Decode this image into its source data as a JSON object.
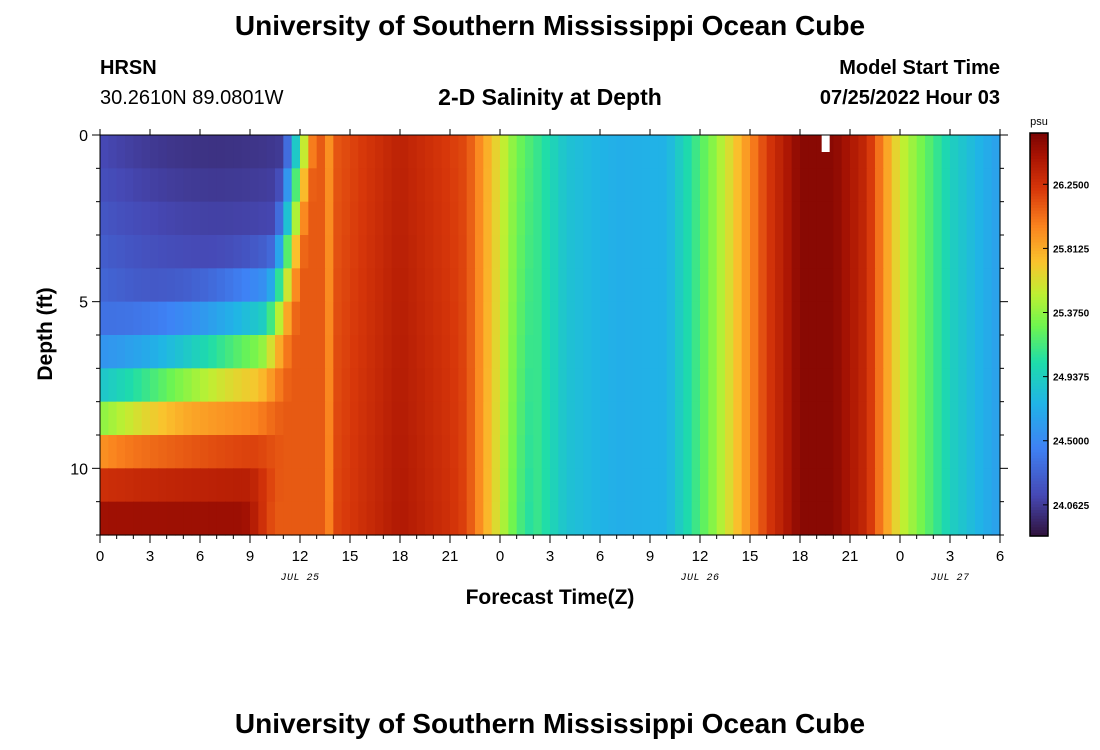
{
  "page": {
    "title": "University of Southern Mississippi Ocean Cube",
    "title_repeat": "University of Southern Mississippi Ocean Cube",
    "station": "HRSN",
    "coords": "30.2610N  89.0801W",
    "subtitle": "2-D Salinity at Depth",
    "model_label": "Model Start Time",
    "model_time": "07/25/2022 Hour 03"
  },
  "chart_data": {
    "type": "heatmap",
    "title": "2-D Salinity at Depth",
    "xlabel": "Forecast Time(Z)",
    "ylabel": "Depth (ft)",
    "x_range_hours": [
      0,
      54
    ],
    "y_range_ft": [
      0,
      12
    ],
    "x_ticks": [
      {
        "hour": 0,
        "label": "0"
      },
      {
        "hour": 3,
        "label": "3"
      },
      {
        "hour": 6,
        "label": "6"
      },
      {
        "hour": 9,
        "label": "9"
      },
      {
        "hour": 12,
        "label": "12"
      },
      {
        "hour": 15,
        "label": "15"
      },
      {
        "hour": 18,
        "label": "18"
      },
      {
        "hour": 21,
        "label": "21"
      },
      {
        "hour": 24,
        "label": "0"
      },
      {
        "hour": 27,
        "label": "3"
      },
      {
        "hour": 30,
        "label": "6"
      },
      {
        "hour": 33,
        "label": "9"
      },
      {
        "hour": 36,
        "label": "12"
      },
      {
        "hour": 39,
        "label": "15"
      },
      {
        "hour": 42,
        "label": "18"
      },
      {
        "hour": 45,
        "label": "21"
      },
      {
        "hour": 48,
        "label": "0"
      },
      {
        "hour": 51,
        "label": "3"
      },
      {
        "hour": 54,
        "label": "6"
      }
    ],
    "date_labels": [
      {
        "hour": 12,
        "label": "JUL 25"
      },
      {
        "hour": 36,
        "label": "JUL 26"
      },
      {
        "hour": 51,
        "label": "JUL 27"
      }
    ],
    "y_ticks": [
      {
        "depth": 0,
        "label": "0"
      },
      {
        "depth": 5,
        "label": "5"
      },
      {
        "depth": 10,
        "label": "10"
      }
    ],
    "colorbar": {
      "unit": "psu",
      "range": [
        23.85,
        26.6
      ],
      "ticks": [
        {
          "value": 26.25,
          "label": "26.2500"
        },
        {
          "value": 25.8125,
          "label": "25.8125"
        },
        {
          "value": 25.375,
          "label": "25.3750"
        },
        {
          "value": 24.9375,
          "label": "24.9375"
        },
        {
          "value": 24.5,
          "label": "24.5000"
        },
        {
          "value": 24.0625,
          "label": "24.0625"
        }
      ]
    },
    "depth_levels_ft": [
      0.5,
      1.5,
      2.5,
      3.5,
      4.5,
      5.5,
      6.5,
      7.5,
      8.5,
      9.5,
      10.5,
      11.5
    ],
    "fresh_lens": {
      "description": "low-salinity water near surface early in the forecast",
      "surface_min_psu": 23.95,
      "bottom_max_psu": 26.5
    },
    "surface_timeseries_hours": [
      0,
      6,
      12,
      14,
      18,
      22,
      25,
      28,
      31,
      34,
      37,
      40,
      42,
      44,
      46,
      48,
      51,
      54
    ],
    "surface_timeseries_psu": [
      24.35,
      23.95,
      24.6,
      26.1,
      26.35,
      26.15,
      25.3,
      24.85,
      24.72,
      24.75,
      25.4,
      26.2,
      26.55,
      26.55,
      26.3,
      25.55,
      24.95,
      24.62
    ]
  }
}
